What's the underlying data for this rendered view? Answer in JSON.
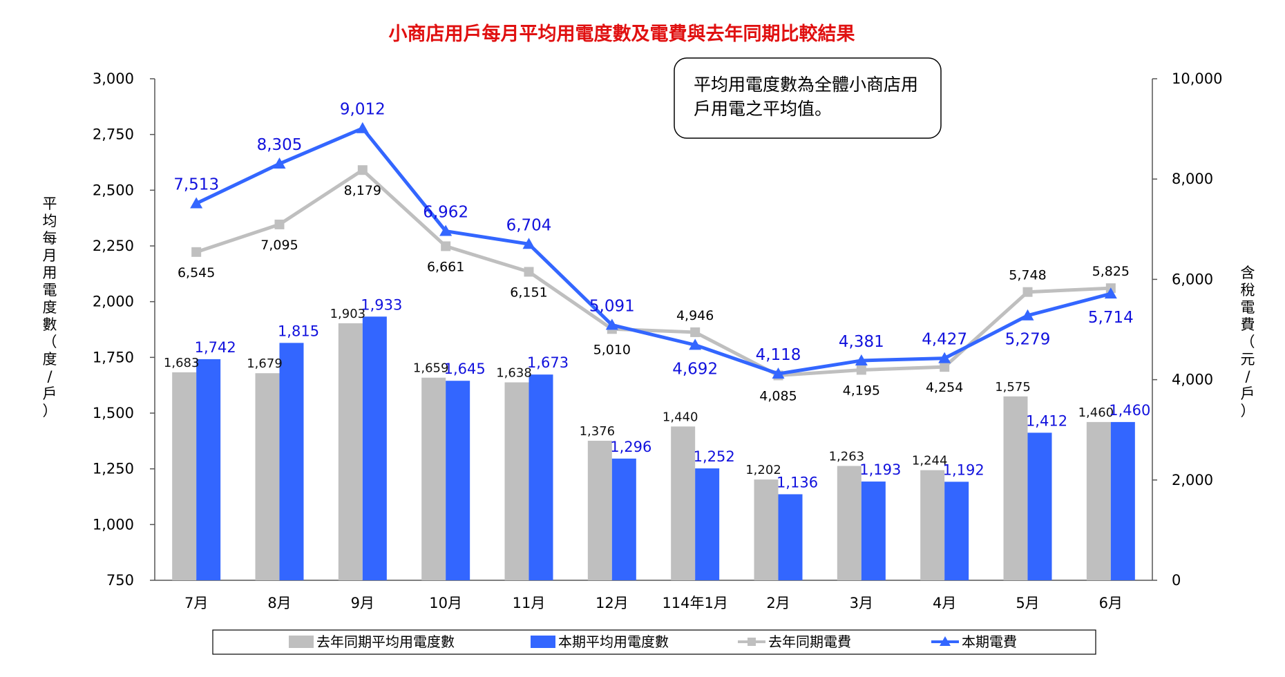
{
  "chart_data": {
    "type": "bar",
    "title": "小商店用戶每月平均用電度數及電費與去年同期比較結果",
    "categories": [
      "7月",
      "8月",
      "9月",
      "10月",
      "11月",
      "12月",
      "114年1月",
      "2月",
      "3月",
      "4月",
      "5月",
      "6月"
    ],
    "ylabel_left": "平均每月用電度數（度/戶）",
    "ylabel_right": "含稅電費（元/戶）",
    "ylim_left": [
      750,
      3000
    ],
    "yticks_left": [
      "750",
      "1,000",
      "1,250",
      "1,500",
      "1,750",
      "2,000",
      "2,250",
      "2,500",
      "2,750",
      "3,000"
    ],
    "ylim_right": [
      0,
      10000
    ],
    "yticks_right": [
      "0",
      "2,000",
      "4,000",
      "6,000",
      "8,000",
      "10,000"
    ],
    "grid": false,
    "legend_position": "bottom",
    "note": [
      "平均用電度數為全體小商店用",
      "戶用電之平均值。"
    ],
    "colors": {
      "gray": "#bfbfbf",
      "blue": "#3366ff",
      "title": "#e01010",
      "label_blue": "#1111dd"
    },
    "series": [
      {
        "name": "去年同期平均用電度數",
        "kind": "bar",
        "axis": "left",
        "values": [
          1683,
          1679,
          1903,
          1659,
          1638,
          1376,
          1440,
          1202,
          1263,
          1244,
          1575,
          1460
        ],
        "labels": [
          "1,683",
          "1,679",
          "1,903",
          "1,659",
          "1,638",
          "1,376",
          "1,440",
          "1,202",
          "1,263",
          "1,244",
          "1,575",
          "1,460"
        ]
      },
      {
        "name": "本期平均用電度數",
        "kind": "bar",
        "axis": "left",
        "values": [
          1742,
          1815,
          1933,
          1645,
          1673,
          1296,
          1252,
          1136,
          1193,
          1192,
          1412,
          1460
        ],
        "labels": [
          "1,742",
          "1,815",
          "1,933",
          "1,645",
          "1,673",
          "1,296",
          "1,252",
          "1,136",
          "1,193",
          "1,192",
          "1,412",
          "1,460"
        ]
      },
      {
        "name": "去年同期電費",
        "kind": "line",
        "axis": "right",
        "values": [
          6545,
          7095,
          8179,
          6661,
          6151,
          5010,
          4946,
          4085,
          4195,
          4254,
          5748,
          5825
        ],
        "labels": [
          "6,545",
          "7,095",
          "8,179",
          "6,661",
          "6,151",
          "5,010",
          "4,946",
          "4,085",
          "4,195",
          "4,254",
          "5,748",
          "5,825"
        ]
      },
      {
        "name": "本期電費",
        "kind": "line",
        "axis": "right",
        "values": [
          7513,
          8305,
          9012,
          6962,
          6704,
          5091,
          4692,
          4118,
          4381,
          4427,
          5279,
          5714
        ],
        "labels": [
          "7,513",
          "8,305",
          "9,012",
          "6,962",
          "6,704",
          "5,091",
          "4,692",
          "4,118",
          "4,381",
          "4,427",
          "5,279",
          "5,714"
        ]
      }
    ]
  }
}
